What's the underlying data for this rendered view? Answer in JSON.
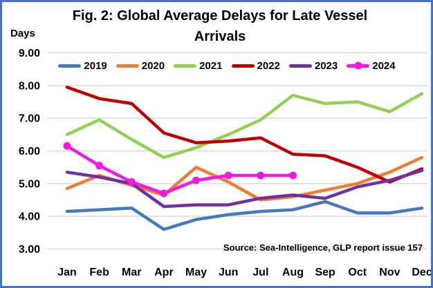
{
  "window": {
    "border_color": "#4472C4",
    "background": "#FFFFFF"
  },
  "title": "Fig. 2: Global Average Delays for Late Vessel Arrivals",
  "y_axis_label": "Days",
  "source_note": "Source: Sea-Intelligence, GLP report issue 157",
  "chart_data": {
    "type": "line",
    "title": "Fig. 2: Global Average Delays for Late Vessel Arrivals",
    "xlabel": "",
    "ylabel": "Days",
    "ylim": [
      3.0,
      9.0
    ],
    "grid": true,
    "legend_position": "top",
    "gridline_color": "#D9D9D9",
    "y_ticks": [
      "9.00",
      "8.00",
      "7.00",
      "6.00",
      "5.00",
      "4.00",
      "3.00"
    ],
    "categories": [
      "Jan",
      "Feb",
      "Mar",
      "Apr",
      "May",
      "Jun",
      "Jul",
      "Aug",
      "Sep",
      "Oct",
      "Nov",
      "Dec"
    ],
    "series": [
      {
        "name": "2019",
        "color": "#4579BD",
        "marker": false,
        "values": [
          4.15,
          4.2,
          4.25,
          3.6,
          3.9,
          4.05,
          4.15,
          4.2,
          4.45,
          4.1,
          4.1,
          4.25
        ]
      },
      {
        "name": "2020",
        "color": "#ED7D31",
        "marker": false,
        "values": [
          4.85,
          5.25,
          4.95,
          4.65,
          5.5,
          5.05,
          4.5,
          4.6,
          4.8,
          5.0,
          5.35,
          5.8
        ]
      },
      {
        "name": "2021",
        "color": "#92D050",
        "marker": false,
        "values": [
          6.5,
          6.95,
          6.35,
          5.8,
          6.1,
          6.5,
          6.95,
          7.7,
          7.45,
          7.5,
          7.2,
          7.75
        ]
      },
      {
        "name": "2022",
        "color": "#C00000",
        "marker": false,
        "values": [
          7.95,
          7.6,
          7.45,
          6.55,
          6.25,
          6.3,
          6.4,
          5.9,
          5.85,
          5.5,
          5.05,
          5.45
        ]
      },
      {
        "name": "2023",
        "color": "#7030A0",
        "marker": false,
        "values": [
          5.35,
          5.2,
          5.0,
          4.3,
          4.35,
          4.35,
          4.55,
          4.65,
          4.55,
          4.9,
          5.1,
          5.4
        ]
      },
      {
        "name": "2024",
        "color": "#F317E3",
        "marker": true,
        "values": [
          6.15,
          5.55,
          5.05,
          4.7,
          5.1,
          5.25,
          5.25,
          5.25
        ]
      }
    ]
  }
}
